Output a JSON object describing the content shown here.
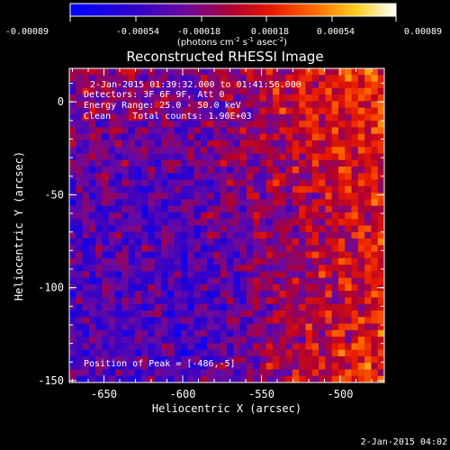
{
  "colorbar": {
    "ticks": [
      "-0.00089",
      "-0.00054",
      "-0.00018",
      "0.00018",
      "0.00054",
      "0.00089"
    ],
    "units_main": "(photons cm",
    "units_exp1": "-2",
    "units_mid": " s",
    "units_exp2": "-1",
    "units_tail": " asec",
    "units_exp3": "-2",
    "units_close": ")"
  },
  "info": {
    "line1": "2-Jan-2015 01:39:32.000 to 01:41:56.000",
    "line2": "Detectors: 3F 6F 9F, Att 0",
    "line3": "Energy Range: 25.0 - 50.0 keV",
    "line4": "Clean    Total counts: 1.90E+03",
    "peak": "Position of Peak = [-486,-5]"
  },
  "timestamp": "2-Jan-2015 04:02",
  "chart_data": {
    "type": "heatmap",
    "title": "Reconstructed RHESSI Image",
    "xlabel": "Heliocentric X (arcsec)",
    "ylabel": "Heliocentric Y (arcsec)",
    "xlim": [
      -672,
      -472
    ],
    "ylim": [
      -151,
      18
    ],
    "xticks": [
      -650,
      -600,
      -550,
      -500
    ],
    "yticks": [
      0,
      -50,
      -100,
      -150
    ],
    "xtick_labels": [
      "-650",
      "-600",
      "-550",
      "-500"
    ],
    "ytick_labels": [
      "0",
      "-50",
      "-100",
      "-150"
    ],
    "colorbar_range": [
      -0.00089,
      0.00089
    ],
    "colormap": "blue-purple-red-orange-yellow-white (RHESSI)",
    "peak_position": [
      -486,
      -5
    ]
  }
}
